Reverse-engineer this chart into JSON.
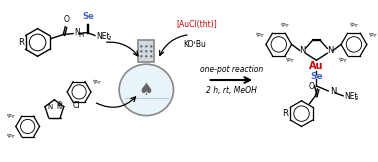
{
  "bg_color": "#ffffff",
  "arrow_text_line1": "one-pot reaction",
  "arrow_text_line2": "2 h, rt, MeOH",
  "reagent1": "[AuCl(tht)]",
  "reagent2": "KOᵗBu",
  "reagent1_color": "#cc0000",
  "reagent2_color": "#000000",
  "arrow_color": "#000000",
  "se_color": "#4466cc",
  "au_color": "#cc0000",
  "figsize": [
    3.78,
    1.62
  ],
  "dpi": 100
}
